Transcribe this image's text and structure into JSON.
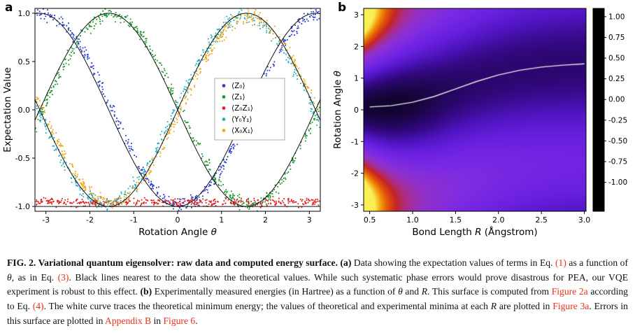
{
  "page": {
    "background": "#ffffff"
  },
  "panels": {
    "a": {
      "label": "a"
    },
    "b": {
      "label": "b"
    }
  },
  "chart_data": [
    {
      "type": "scatter",
      "panel": "a",
      "xlabel": "Rotation Angle θ",
      "ylabel": "Expectation Value",
      "xlim": [
        -3.25,
        3.25
      ],
      "ylim": [
        -1.05,
        1.05
      ],
      "xticks": [
        "-3",
        "-2",
        "-1",
        "0",
        "1",
        "2",
        "3"
      ],
      "yticks": [
        "-1.0",
        "-0.5",
        "0.0",
        "0.5",
        "1.0"
      ],
      "legend_position": "center right",
      "grid": false,
      "theory_color": "#111111",
      "series": [
        {
          "name": "⟨Z₀⟩",
          "color": "#2b3fd0",
          "shape": "ncos",
          "amp": 0.99,
          "phase": 0.08,
          "noise": 0.035,
          "n": 420,
          "model": "-cos(θ)"
        },
        {
          "name": "⟨Z₁⟩",
          "color": "#1c9c2e",
          "shape": "nsin",
          "amp": 0.99,
          "phase": 0.07,
          "noise": 0.035,
          "n": 420,
          "model": "-sin(θ)"
        },
        {
          "name": "⟨Z₀Z₁⟩",
          "color": "#e02020",
          "shape": "const",
          "value": -0.958,
          "noise": 0.022,
          "n": 420,
          "model": "-1 (constant)"
        },
        {
          "name": "⟨Y₀Y₁⟩",
          "color": "#22b2c6",
          "shape": "sin",
          "amp": 0.97,
          "phase": -0.05,
          "noise": 0.035,
          "n": 420,
          "model": "sin(θ)"
        },
        {
          "name": "⟨X₀X₁⟩",
          "color": "#f2a71b",
          "shape": "sin",
          "amp": 0.96,
          "phase": 0.06,
          "noise": 0.035,
          "n": 420,
          "model": "sin(θ)"
        }
      ],
      "theory": [
        {
          "shape": "ncos"
        },
        {
          "shape": "nsin"
        },
        {
          "shape": "sin"
        },
        {
          "shape": "const",
          "value": -1.0
        }
      ]
    },
    {
      "type": "heatmap",
      "panel": "b",
      "xlabel": "Bond Length R (Ångstrom)",
      "ylabel": "Rotation Angle θ",
      "xlim": [
        0.43,
        3.02
      ],
      "ylim": [
        -3.2,
        3.2
      ],
      "xticks": [
        "0.5",
        "1.0",
        "1.5",
        "2.0",
        "2.5",
        "3.0"
      ],
      "yticks": [
        "-3",
        "-2",
        "-1",
        "0",
        "1",
        "2",
        "3"
      ],
      "colorbar_ticks": [
        "1.00",
        "0.75",
        "0.50",
        "0.25",
        "0.00",
        "-0.25",
        "-0.50",
        "-0.75",
        "-1.00"
      ],
      "colorbar_lim": [
        -1.35,
        1.1
      ],
      "colormap": [
        [
          0.0,
          "#000000"
        ],
        [
          0.09,
          "#120430"
        ],
        [
          0.2,
          "#31087c"
        ],
        [
          0.3,
          "#4f14c0"
        ],
        [
          0.4,
          "#6a20e0"
        ],
        [
          0.52,
          "#7e2be2"
        ],
        [
          0.62,
          "#9231c8"
        ],
        [
          0.7,
          "#aa2d86"
        ],
        [
          0.77,
          "#c42425"
        ],
        [
          0.85,
          "#e25708"
        ],
        [
          0.92,
          "#f29a0b"
        ],
        [
          1.0,
          "#f9ef55"
        ]
      ],
      "white_curve": [
        [
          0.5,
          0.09
        ],
        [
          0.75,
          0.13
        ],
        [
          1.0,
          0.24
        ],
        [
          1.25,
          0.42
        ],
        [
          1.5,
          0.66
        ],
        [
          1.75,
          0.9
        ],
        [
          2.0,
          1.1
        ],
        [
          2.25,
          1.25
        ],
        [
          2.5,
          1.35
        ],
        [
          2.75,
          1.41
        ],
        [
          3.0,
          1.45
        ]
      ],
      "white_curve_color": "#ececec",
      "surface_model": {
        "formula": "E(R,θ) = m(R) + a(R)·(1 − cos(θ − θ*(R)))",
        "min_far": -0.91,
        "min_depth": 0.23,
        "min_r0": 0.72,
        "min_width": 0.62,
        "amp_far": 0.3,
        "amp_scale": 0.9,
        "amp_decay": 0.6
      }
    }
  ],
  "caption": {
    "segments": [
      {
        "style": "bold",
        "text": "FIG. 2.  Variational quantum eigensolver: raw data and computed energy surface.  "
      },
      {
        "style": "bold",
        "text": "(a)"
      },
      {
        "style": "normal",
        "text": " Data showing the expectation values of terms in Eq. "
      },
      {
        "style": "link",
        "text": "(1)",
        "name": "eq-1"
      },
      {
        "style": "normal",
        "text": " as a function of "
      },
      {
        "style": "italic",
        "text": "θ"
      },
      {
        "style": "normal",
        "text": ", as in Eq. "
      },
      {
        "style": "link",
        "text": "(3)",
        "name": "eq-3"
      },
      {
        "style": "normal",
        "text": ". Black lines nearest to the data show the theoretical values. While such systematic phase errors would prove disastrous for PEA, our VQE experiment is robust to this effect. "
      },
      {
        "style": "bold",
        "text": "(b)"
      },
      {
        "style": "normal",
        "text": " Experimentally measured energies (in Hartree) as a function of "
      },
      {
        "style": "italic",
        "text": "θ"
      },
      {
        "style": "normal",
        "text": " and "
      },
      {
        "style": "italic",
        "text": "R"
      },
      {
        "style": "normal",
        "text": ". This surface is computed from "
      },
      {
        "style": "link",
        "text": "Figure 2a",
        "name": "figure-2a"
      },
      {
        "style": "normal",
        "text": " according to Eq. "
      },
      {
        "style": "link",
        "text": "(4)",
        "name": "eq-4"
      },
      {
        "style": "normal",
        "text": ". The white curve traces the theoretical minimum energy; the values of theoretical and experimental minima at each "
      },
      {
        "style": "italic",
        "text": "R"
      },
      {
        "style": "normal",
        "text": " are plotted in "
      },
      {
        "style": "link",
        "text": "Figure 3a",
        "name": "figure-3a"
      },
      {
        "style": "normal",
        "text": ". Errors in this surface are plotted in "
      },
      {
        "style": "link",
        "text": "Appendix B",
        "name": "appendix-b"
      },
      {
        "style": "normal",
        "text": " in "
      },
      {
        "style": "link",
        "text": "Figure 6",
        "name": "figure-6"
      },
      {
        "style": "normal",
        "text": "."
      }
    ]
  }
}
